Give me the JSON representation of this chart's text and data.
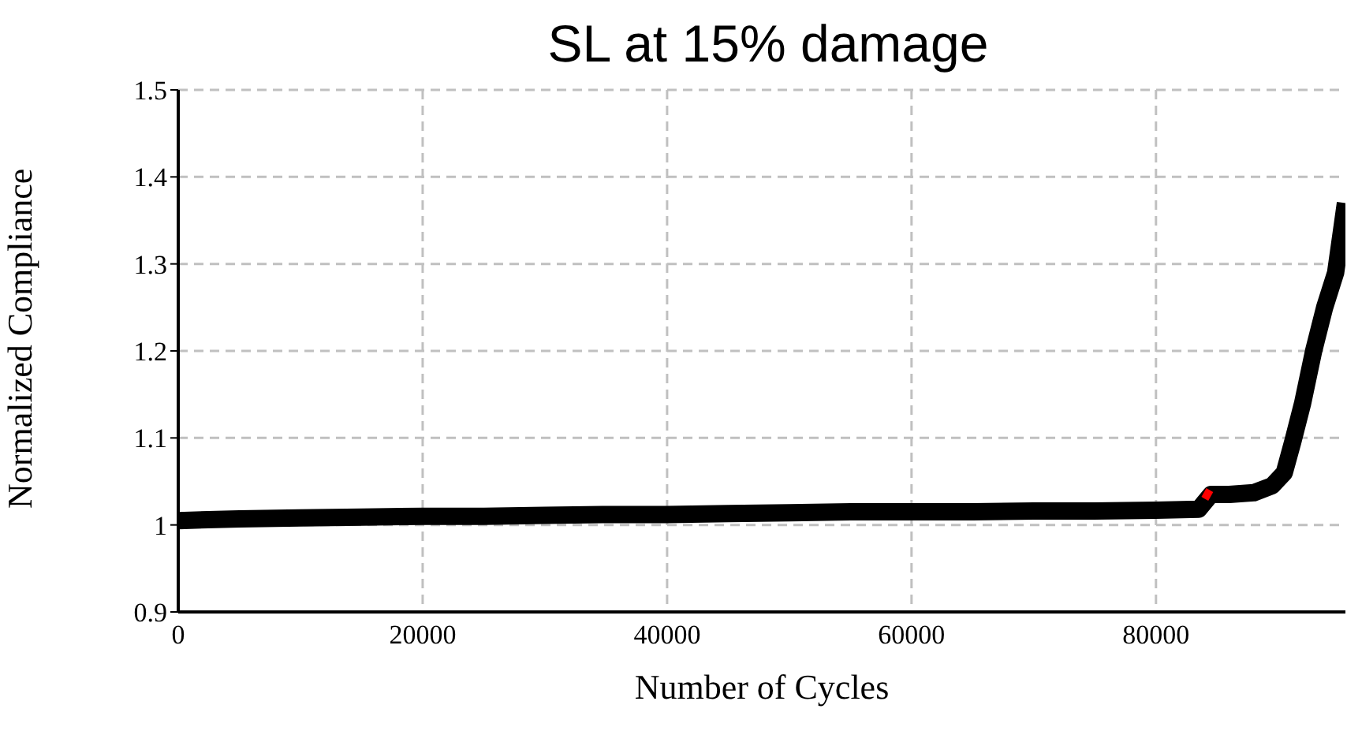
{
  "chart_data": {
    "type": "line",
    "title": "SL at 15% damage",
    "xlabel": "Number of Cycles",
    "ylabel": "Normalized Compliance",
    "xlim": [
      0,
      95500
    ],
    "xticks": [
      0,
      20000,
      40000,
      60000,
      80000
    ],
    "ylim": [
      0.9,
      1.5
    ],
    "yticks": [
      0.9,
      1,
      1.1,
      1.2,
      1.3,
      1.4,
      1.5
    ],
    "grid": true,
    "marker": "none",
    "series": [
      {
        "color": "#000000",
        "x": [
          0,
          5000,
          10000,
          15000,
          20000,
          25000,
          30000,
          35000,
          40000,
          45000,
          50000,
          55000,
          60000,
          65000,
          70000,
          75000,
          80000,
          83500,
          84500,
          86000,
          88000,
          89500,
          90500,
          91200,
          92000,
          92900,
          93800,
          94700,
          95500
        ],
        "values": [
          1.005,
          1.007,
          1.008,
          1.009,
          1.01,
          1.01,
          1.011,
          1.012,
          1.012,
          1.013,
          1.014,
          1.015,
          1.015,
          1.015,
          1.016,
          1.016,
          1.017,
          1.018,
          1.035,
          1.035,
          1.037,
          1.045,
          1.06,
          1.096,
          1.14,
          1.2,
          1.25,
          1.29,
          1.37
        ]
      },
      {
        "color": "#ff0000",
        "x": [
          84000,
          84400
        ],
        "values": [
          1.03,
          1.04
        ]
      }
    ]
  }
}
